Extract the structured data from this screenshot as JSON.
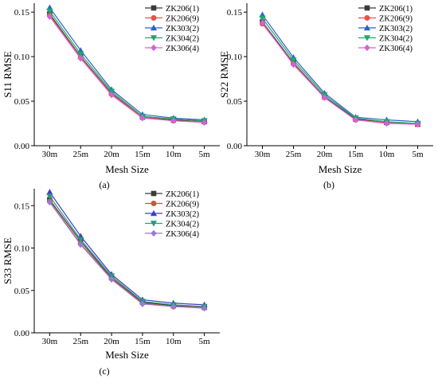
{
  "x_title": "Mesh Size",
  "chart_data": [
    {
      "type": "line",
      "panel_label": "(a)",
      "categories": [
        "30m",
        "25m",
        "20m",
        "15m",
        "10m",
        "5m"
      ],
      "ylabel": "S11 RMSE",
      "xlabel": "Mesh Size",
      "ylim": [
        0,
        0.16
      ],
      "yticks": [
        "0.00",
        "0.05",
        "0.10",
        "0.15"
      ],
      "grid": false,
      "legend_position": "top-right",
      "series": [
        {
          "name": "ZK206(1)",
          "color": "#3b3b3b",
          "marker": "square",
          "values": [
            0.148,
            0.1,
            0.059,
            0.032,
            0.029,
            0.027
          ]
        },
        {
          "name": "ZK206(9)",
          "color": "#e8504a",
          "marker": "circle",
          "values": [
            0.146,
            0.099,
            0.058,
            0.032,
            0.028,
            0.027
          ]
        },
        {
          "name": "ZK303(2)",
          "color": "#2b62c9",
          "marker": "triangle-up",
          "values": [
            0.155,
            0.107,
            0.063,
            0.035,
            0.031,
            0.029
          ]
        },
        {
          "name": "ZK304(2)",
          "color": "#1fa86b",
          "marker": "triangle-down",
          "values": [
            0.151,
            0.103,
            0.061,
            0.033,
            0.03,
            0.028
          ]
        },
        {
          "name": "ZK306(4)",
          "color": "#d163d1",
          "marker": "diamond",
          "values": [
            0.145,
            0.098,
            0.057,
            0.031,
            0.028,
            0.026
          ]
        }
      ]
    },
    {
      "type": "line",
      "panel_label": "(b)",
      "categories": [
        "30m",
        "25m",
        "20m",
        "15m",
        "10m",
        "5m"
      ],
      "ylabel": "S22 RMSE",
      "xlabel": "Mesh Size",
      "ylim": [
        0,
        0.16
      ],
      "yticks": [
        "0.00",
        "0.05",
        "0.10",
        "0.15"
      ],
      "grid": false,
      "legend_position": "top-right",
      "series": [
        {
          "name": "ZK206(1)",
          "color": "#3b3b3b",
          "marker": "square",
          "values": [
            0.139,
            0.093,
            0.055,
            0.03,
            0.026,
            0.024
          ]
        },
        {
          "name": "ZK206(9)",
          "color": "#e8504a",
          "marker": "circle",
          "values": [
            0.137,
            0.092,
            0.054,
            0.029,
            0.026,
            0.024
          ]
        },
        {
          "name": "ZK303(2)",
          "color": "#2b62c9",
          "marker": "triangle-up",
          "values": [
            0.147,
            0.099,
            0.059,
            0.032,
            0.029,
            0.027
          ]
        },
        {
          "name": "ZK304(2)",
          "color": "#1fa86b",
          "marker": "triangle-down",
          "values": [
            0.143,
            0.096,
            0.057,
            0.031,
            0.027,
            0.025
          ]
        },
        {
          "name": "ZK306(4)",
          "color": "#d163d1",
          "marker": "diamond",
          "values": [
            0.138,
            0.091,
            0.054,
            0.029,
            0.025,
            0.024
          ]
        }
      ]
    },
    {
      "type": "line",
      "panel_label": "(c)",
      "categories": [
        "30m",
        "25m",
        "20m",
        "15m",
        "10m",
        "5m"
      ],
      "ylabel": "S33 RMSE",
      "xlabel": "Mesh Size",
      "ylim": [
        0,
        0.17
      ],
      "yticks": [
        "0.00",
        "0.05",
        "0.10",
        "0.15"
      ],
      "grid": false,
      "legend_position": "top-right",
      "series": [
        {
          "name": "ZK206(1)",
          "color": "#3b3b3b",
          "marker": "square",
          "values": [
            0.157,
            0.108,
            0.065,
            0.036,
            0.032,
            0.03
          ]
        },
        {
          "name": "ZK206(9)",
          "color": "#c8573f",
          "marker": "circle",
          "values": [
            0.155,
            0.105,
            0.064,
            0.035,
            0.031,
            0.03
          ]
        },
        {
          "name": "ZK303(2)",
          "color": "#3b3fc9",
          "marker": "triangle-up",
          "values": [
            0.166,
            0.114,
            0.069,
            0.039,
            0.035,
            0.033
          ]
        },
        {
          "name": "ZK304(2)",
          "color": "#2a9a7a",
          "marker": "triangle-down",
          "values": [
            0.161,
            0.11,
            0.067,
            0.037,
            0.033,
            0.031
          ]
        },
        {
          "name": "ZK306(4)",
          "color": "#9a7ad1",
          "marker": "diamond",
          "values": [
            0.154,
            0.104,
            0.063,
            0.034,
            0.031,
            0.029
          ]
        }
      ]
    }
  ]
}
